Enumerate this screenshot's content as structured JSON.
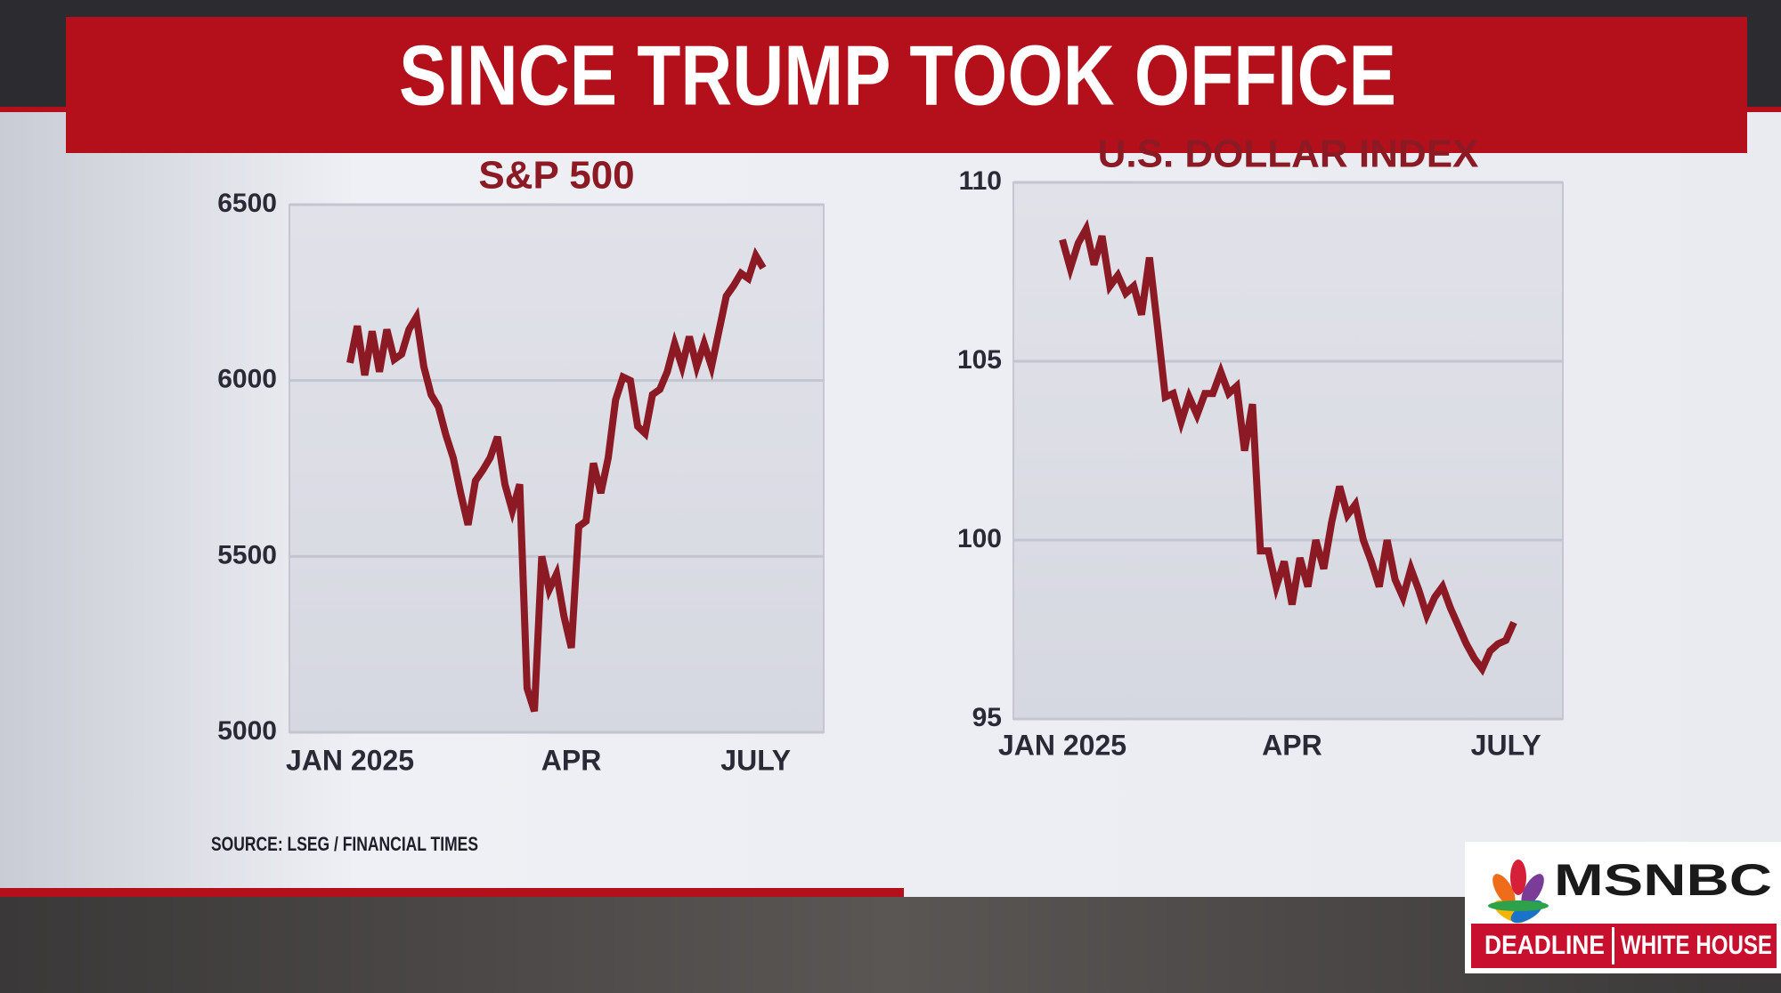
{
  "headline": "SINCE TRUMP TOOK OFFICE",
  "source": "SOURCE: LSEG / FINANCIAL TIMES",
  "logo": {
    "network": "MSNBC",
    "show": [
      "DEADLINE",
      "WHITE HOUSE"
    ]
  },
  "chart_data": [
    {
      "type": "line",
      "title": "S&P 500",
      "color": "#8c1a24",
      "grid": true,
      "categories": [
        "JAN 2025",
        null,
        null,
        null,
        null,
        null,
        null,
        null,
        null,
        null,
        null,
        null,
        null,
        null,
        null,
        null,
        null,
        null,
        null,
        null,
        null,
        null,
        null,
        null,
        null,
        null,
        null,
        null,
        null,
        null,
        "APR",
        null,
        null,
        null,
        null,
        null,
        null,
        null,
        null,
        null,
        null,
        null,
        null,
        null,
        null,
        null,
        null,
        null,
        null,
        null,
        null,
        null,
        null,
        null,
        null,
        "JULY",
        null
      ],
      "values": [
        6050,
        6155,
        6015,
        6140,
        6025,
        6145,
        6060,
        6075,
        6145,
        6180,
        6040,
        5960,
        5925,
        5845,
        5780,
        5680,
        5590,
        5715,
        5745,
        5780,
        5840,
        5705,
        5630,
        5705,
        5125,
        5060,
        5500,
        5405,
        5450,
        5330,
        5240,
        5585,
        5600,
        5765,
        5680,
        5780,
        5945,
        6010,
        6000,
        5870,
        5850,
        5960,
        5975,
        6025,
        6105,
        6040,
        6125,
        6040,
        6105,
        6040,
        6140,
        6240,
        6270,
        6305,
        6290,
        6355,
        6320
      ],
      "ylim": [
        5000,
        6500
      ],
      "yticks": [
        5000,
        5500,
        6000,
        6500
      ]
    },
    {
      "type": "line",
      "title": "U.S. DOLLAR INDEX",
      "color": "#8c1a24",
      "grid": true,
      "categories": [
        "JAN 2025",
        null,
        null,
        null,
        null,
        null,
        null,
        null,
        null,
        null,
        null,
        null,
        null,
        null,
        null,
        null,
        null,
        null,
        null,
        null,
        null,
        null,
        null,
        null,
        null,
        null,
        null,
        null,
        null,
        "APR",
        null,
        null,
        null,
        null,
        null,
        null,
        null,
        null,
        null,
        null,
        null,
        null,
        null,
        null,
        null,
        null,
        null,
        null,
        null,
        null,
        null,
        null,
        null,
        null,
        null,
        null,
        "JULY",
        null
      ],
      "values": [
        108.4,
        107.6,
        108.3,
        108.7,
        107.7,
        108.5,
        107.1,
        107.4,
        106.9,
        107.1,
        106.3,
        107.9,
        106.0,
        104.0,
        104.1,
        103.3,
        104.0,
        103.5,
        104.1,
        104.1,
        104.7,
        104.1,
        104.3,
        102.5,
        103.8,
        99.7,
        99.7,
        98.7,
        99.4,
        98.2,
        99.5,
        98.7,
        100.0,
        99.2,
        100.5,
        101.5,
        100.7,
        101.0,
        100.0,
        99.4,
        98.7,
        100.0,
        98.9,
        98.4,
        99.2,
        98.6,
        97.9,
        98.4,
        98.7,
        98.1,
        97.6,
        97.1,
        96.7,
        96.4,
        96.9,
        97.1,
        97.2,
        97.7
      ],
      "ylim": [
        95,
        110
      ],
      "yticks": [
        95,
        100,
        105,
        110
      ]
    }
  ]
}
